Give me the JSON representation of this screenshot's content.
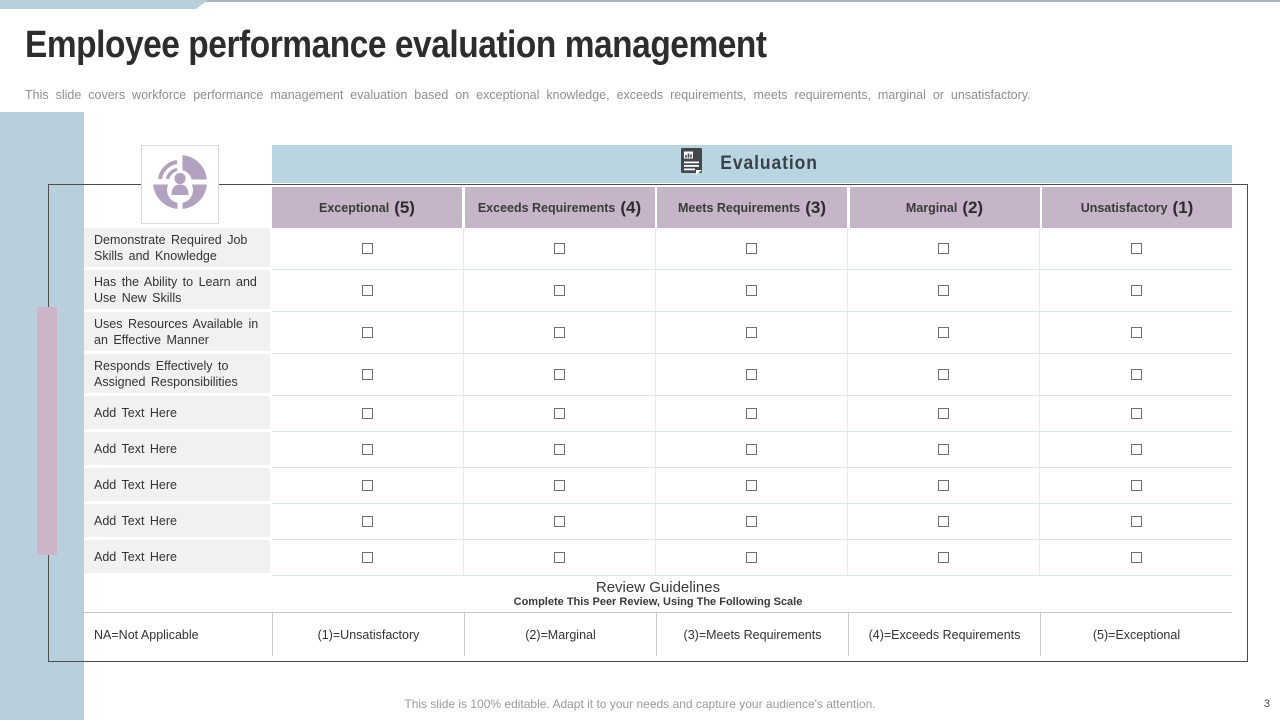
{
  "slide": {
    "title": "Employee performance evaluation management",
    "subtitle": "This slide covers workforce performance management evaluation based on exceptional knowledge, exceeds requirements, meets requirements, marginal or unsatisfactory.",
    "footer_note": "This slide is 100% editable. Adapt it to your needs and capture your audience's attention.",
    "page_number": "3"
  },
  "table": {
    "header": {
      "icon": "document-report-icon",
      "title": "Evaluation"
    },
    "columns": [
      {
        "label": "Exceptional",
        "score": "(5)"
      },
      {
        "label": "Exceeds Requirements",
        "score": "(4)"
      },
      {
        "label": "Meets Requirements",
        "score": "(3)"
      },
      {
        "label": "Marginal",
        "score": "(2)"
      },
      {
        "label": "Unsatisfactory",
        "score": "(1)"
      }
    ],
    "rows": [
      "Demonstrate Required Job Skills and Knowledge",
      "Has the Ability to Learn and Use New Skills",
      "Uses Resources Available in an Effective Manner",
      "Responds Effectively to Assigned Responsibilities",
      "Add Text Here",
      "Add Text Here",
      "Add Text Here",
      "Add Text Here",
      "Add Text Here"
    ],
    "checkbox_state": "unchecked",
    "guidelines": {
      "title": "Review Guidelines",
      "subtitle": "Complete This Peer Review, Using The Following Scale"
    },
    "scale": [
      "NA=Not Applicable",
      "(1)=Unsatisfactory",
      "(2)=Marginal",
      "(3)=Meets Requirements",
      "(4)=Exceeds Requirements",
      "(5)=Exceptional"
    ]
  },
  "colors": {
    "accent_blue": "#b7d0dc",
    "header_blue": "#b9d6e0",
    "header_mauve": "#c6b4c8",
    "pink_bar": "#cdb4c8",
    "icon_purple": "#b3a2bf",
    "frame": "#4d4d4d",
    "label_bg": "#f1f1f1",
    "row_line": "#d8e6ec"
  }
}
